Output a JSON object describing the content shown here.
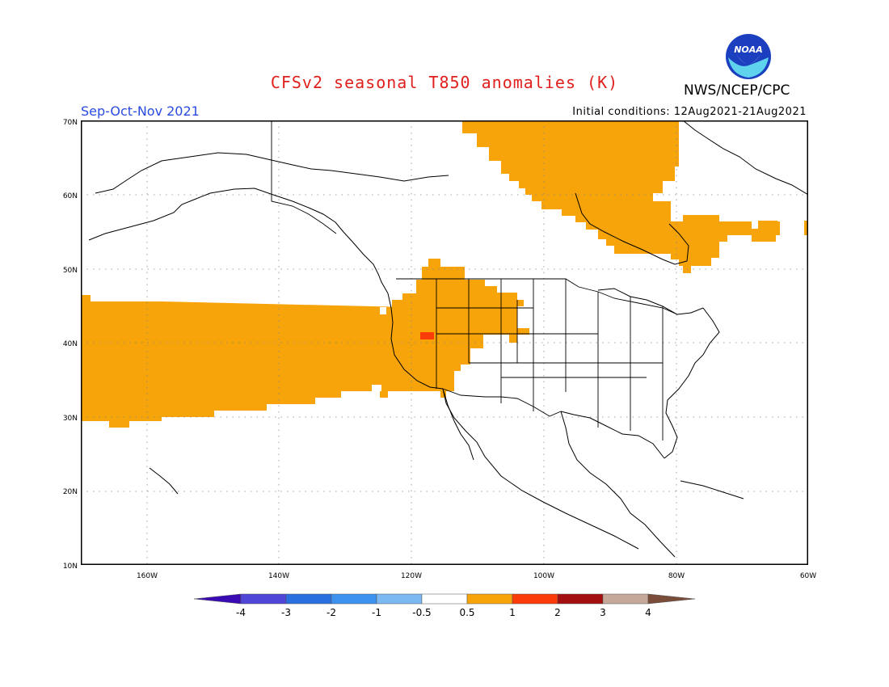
{
  "header": {
    "title": "CFSv2 seasonal T850 anomalies (K)",
    "agency": "NWS/NCEP/CPC",
    "season": "Sep-Oct-Nov 2021",
    "initial_conditions": "Initial conditions: 12Aug2021-21Aug2021",
    "logo_text": "NOAA"
  },
  "map": {
    "lat_labels": [
      "70N",
      "60N",
      "50N",
      "40N",
      "30N",
      "20N",
      "10N"
    ],
    "lon_labels": [
      "160W",
      "140W",
      "120W",
      "100W",
      "80W",
      "60W"
    ],
    "anomaly_colors": {
      "above_0_5": "#f7a30a",
      "above_1": "#fb3c08"
    },
    "regions": [
      "North Pacific warm anomaly band (+0.5 to +1 K)",
      "Western United States warm anomaly (+0.5 to +1 K)",
      "Eastern Canada / Hudson Bay warm anomaly (+0.5 to +1 K)",
      "Nevada warm anomaly (+1 to +2 K)"
    ]
  },
  "colorbar": {
    "labels": [
      "-4",
      "-3",
      "-2",
      "-1",
      "-0.5",
      "0.5",
      "1",
      "2",
      "3",
      "4"
    ],
    "colors": [
      "#3a0bb5",
      "#4f45d6",
      "#2a6fe0",
      "#3d91ef",
      "#7cb8f2",
      "#ffffff",
      "#f7a30a",
      "#fb3c08",
      "#a30f10",
      "#c6a89a",
      "#7a4c3a"
    ]
  }
}
